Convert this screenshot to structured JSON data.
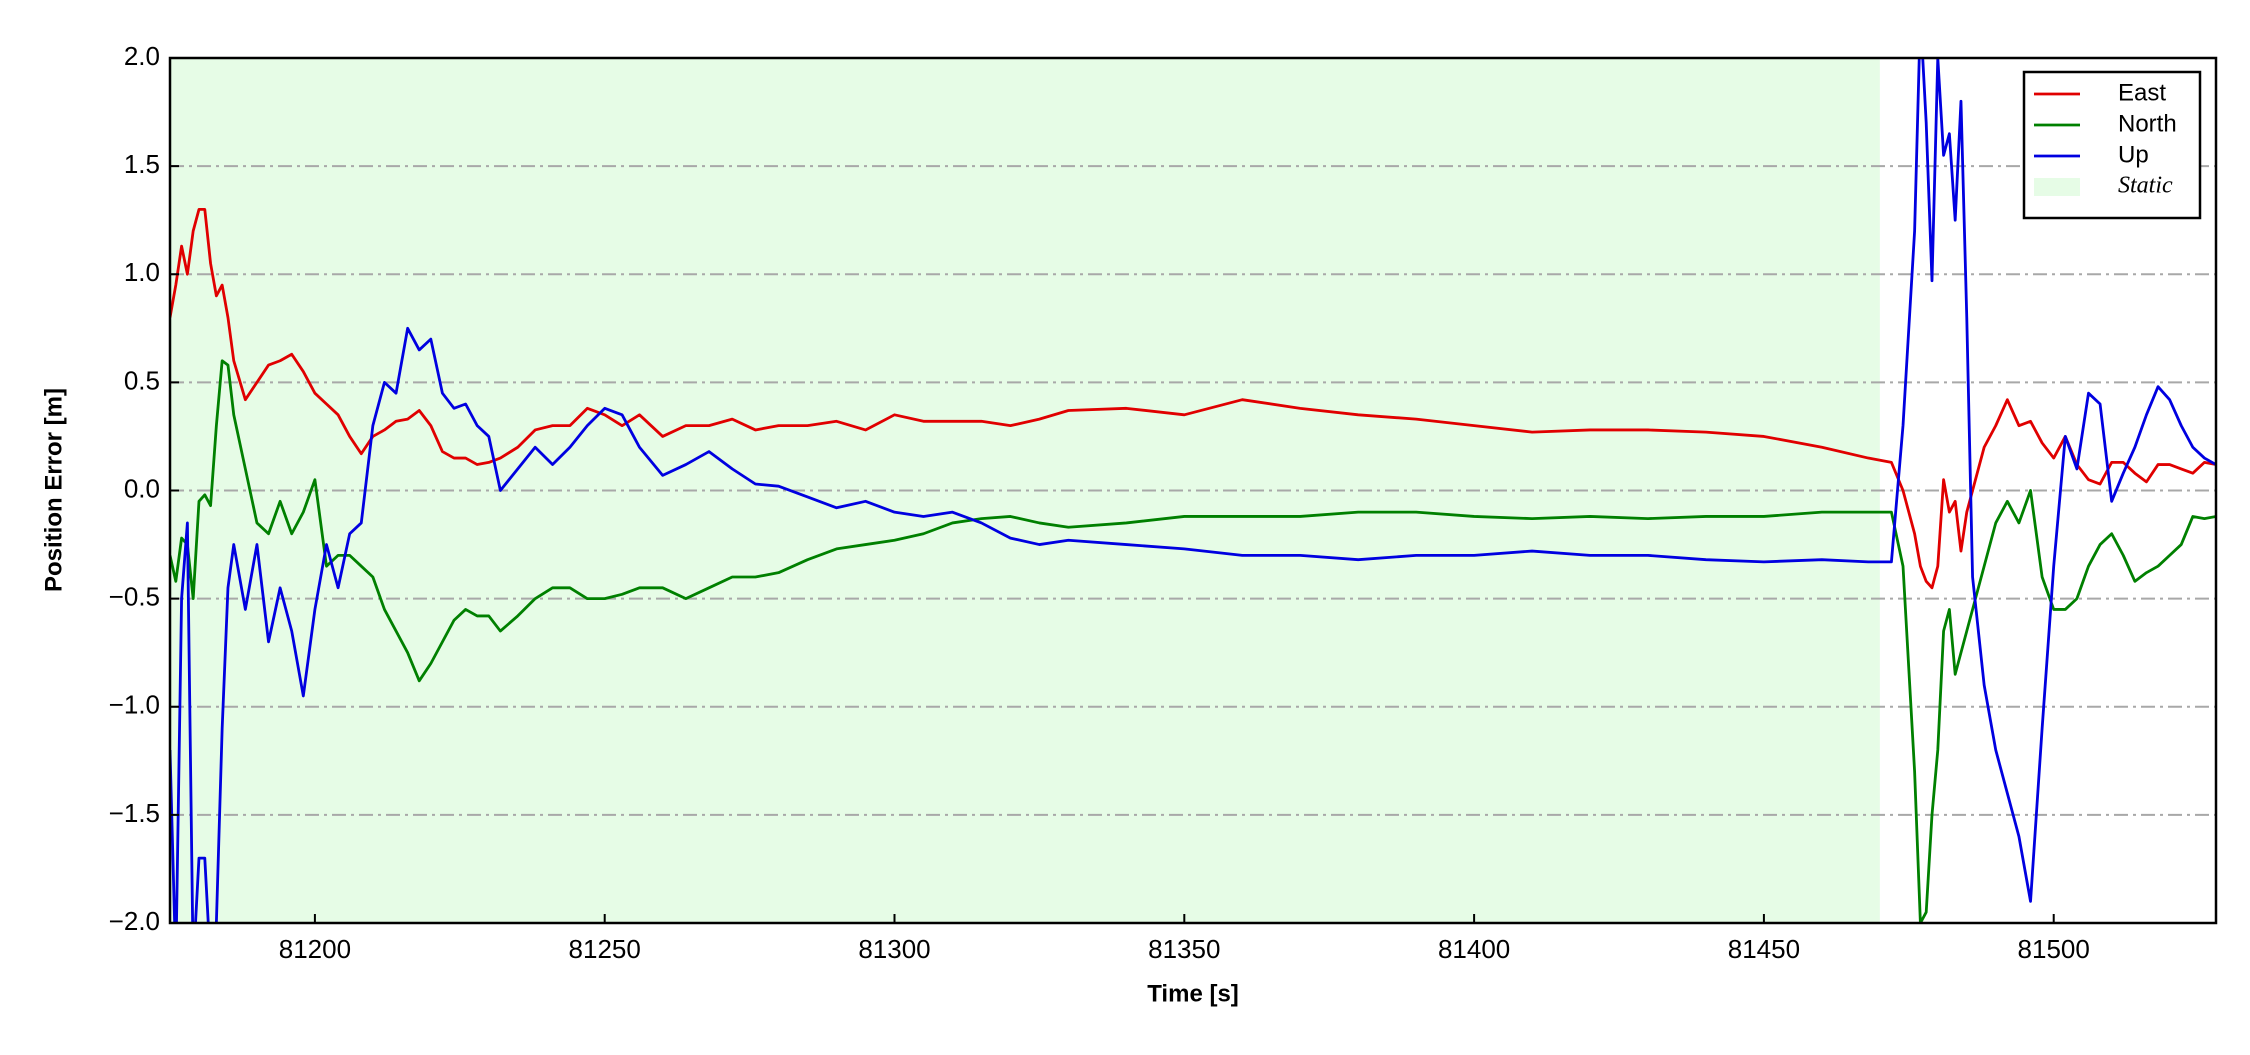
{
  "chart_data": {
    "type": "line",
    "xlabel": "Time [s]",
    "ylabel": "Position Error [m]",
    "xlim": [
      81175,
      81528
    ],
    "ylim": [
      -2.0,
      2.0
    ],
    "xticks": [
      81200,
      81250,
      81300,
      81350,
      81400,
      81450,
      81500
    ],
    "yticks": [
      {
        "value": -2.0,
        "label": "−2.0"
      },
      {
        "value": -1.5,
        "label": "−1.5"
      },
      {
        "value": -1.0,
        "label": "−1.0"
      },
      {
        "value": -0.5,
        "label": "−0.5"
      },
      {
        "value": 0,
        "label": "0.0"
      },
      0.5,
      {
        "value": 1.0,
        "label": "1.0"
      },
      1.5,
      {
        "value": 2.0,
        "label": "2.0"
      }
    ],
    "grid": true,
    "legend": "upper right",
    "shaded_regions": [
      {
        "name": "Static",
        "xlim": [
          81175,
          81470
        ],
        "color": "#e6fce6"
      }
    ],
    "x": [
      81175,
      81176,
      81177,
      81178,
      81179,
      81180,
      81181,
      81182,
      81183,
      81184,
      81185,
      81186,
      81188,
      81190,
      81192,
      81194,
      81196,
      81198,
      81200,
      81202,
      81204,
      81206,
      81208,
      81210,
      81212,
      81214,
      81216,
      81218,
      81220,
      81222,
      81224,
      81226,
      81228,
      81230,
      81232,
      81235,
      81238,
      81241,
      81244,
      81247,
      81250,
      81253,
      81256,
      81260,
      81264,
      81268,
      81272,
      81276,
      81280,
      81285,
      81290,
      81295,
      81300,
      81305,
      81310,
      81315,
      81320,
      81325,
      81330,
      81340,
      81350,
      81360,
      81370,
      81380,
      81390,
      81400,
      81410,
      81420,
      81430,
      81440,
      81450,
      81460,
      81468,
      81472,
      81474,
      81476,
      81477,
      81478,
      81479,
      81480,
      81481,
      81482,
      81483,
      81484,
      81485,
      81486,
      81488,
      81490,
      81492,
      81494,
      81496,
      81498,
      81500,
      81502,
      81504,
      81506,
      81508,
      81510,
      81512,
      81514,
      81516,
      81518,
      81520,
      81522,
      81524,
      81526,
      81528
    ],
    "series": [
      {
        "name": "East",
        "color": "#e00000",
        "values": [
          0.8,
          0.95,
          1.13,
          1.0,
          1.2,
          1.3,
          1.3,
          1.05,
          0.9,
          0.95,
          0.8,
          0.6,
          0.42,
          0.5,
          0.58,
          0.6,
          0.63,
          0.55,
          0.45,
          0.4,
          0.35,
          0.25,
          0.17,
          0.25,
          0.28,
          0.32,
          0.33,
          0.37,
          0.3,
          0.18,
          0.15,
          0.15,
          0.12,
          0.13,
          0.15,
          0.2,
          0.28,
          0.3,
          0.3,
          0.38,
          0.35,
          0.3,
          0.35,
          0.25,
          0.3,
          0.3,
          0.33,
          0.28,
          0.3,
          0.3,
          0.32,
          0.28,
          0.35,
          0.32,
          0.32,
          0.32,
          0.3,
          0.33,
          0.37,
          0.38,
          0.35,
          0.42,
          0.38,
          0.35,
          0.33,
          0.3,
          0.27,
          0.28,
          0.28,
          0.27,
          0.25,
          0.2,
          0.15,
          0.13,
          0.0,
          -0.2,
          -0.35,
          -0.42,
          -0.45,
          -0.35,
          0.05,
          -0.1,
          -0.05,
          -0.28,
          -0.1,
          0.0,
          0.2,
          0.3,
          0.42,
          0.3,
          0.32,
          0.22,
          0.15,
          0.25,
          0.12,
          0.05,
          0.03,
          0.13,
          0.13,
          0.08,
          0.04,
          0.12,
          0.12,
          0.1,
          0.08,
          0.13,
          0.12
        ]
      },
      {
        "name": "North",
        "color": "#008000",
        "values": [
          -0.3,
          -0.42,
          -0.22,
          -0.25,
          -0.5,
          -0.05,
          -0.02,
          -0.07,
          0.3,
          0.6,
          0.58,
          0.35,
          0.1,
          -0.15,
          -0.2,
          -0.05,
          -0.2,
          -0.1,
          0.05,
          -0.35,
          -0.3,
          -0.3,
          -0.35,
          -0.4,
          -0.55,
          -0.65,
          -0.75,
          -0.88,
          -0.8,
          -0.7,
          -0.6,
          -0.55,
          -0.58,
          -0.58,
          -0.65,
          -0.58,
          -0.5,
          -0.45,
          -0.45,
          -0.5,
          -0.5,
          -0.48,
          -0.45,
          -0.45,
          -0.5,
          -0.45,
          -0.4,
          -0.4,
          -0.38,
          -0.32,
          -0.27,
          -0.25,
          -0.23,
          -0.2,
          -0.15,
          -0.13,
          -0.12,
          -0.15,
          -0.17,
          -0.15,
          -0.12,
          -0.12,
          -0.12,
          -0.1,
          -0.1,
          -0.12,
          -0.13,
          -0.12,
          -0.13,
          -0.12,
          -0.12,
          -0.1,
          -0.1,
          -0.1,
          -0.35,
          -1.3,
          -2.0,
          -1.95,
          -1.5,
          -1.2,
          -0.65,
          -0.55,
          -0.85,
          -0.75,
          -0.65,
          -0.55,
          -0.35,
          -0.15,
          -0.05,
          -0.15,
          0.0,
          -0.4,
          -0.55,
          -0.55,
          -0.5,
          -0.35,
          -0.25,
          -0.2,
          -0.3,
          -0.42,
          -0.38,
          -0.35,
          -0.3,
          -0.25,
          -0.12,
          -0.13,
          -0.12
        ]
      },
      {
        "name": "Up",
        "color": "#0000e0",
        "values": [
          -1.2,
          -2.2,
          -0.5,
          -0.15,
          -2.2,
          -1.7,
          -1.7,
          -2.2,
          -2.0,
          -1.1,
          -0.45,
          -0.25,
          -0.55,
          -0.25,
          -0.7,
          -0.45,
          -0.65,
          -0.95,
          -0.55,
          -0.25,
          -0.45,
          -0.2,
          -0.15,
          0.3,
          0.5,
          0.45,
          0.75,
          0.65,
          0.7,
          0.45,
          0.38,
          0.4,
          0.3,
          0.25,
          0.0,
          0.1,
          0.2,
          0.12,
          0.2,
          0.3,
          0.38,
          0.35,
          0.2,
          0.07,
          0.12,
          0.18,
          0.1,
          0.03,
          0.02,
          -0.03,
          -0.08,
          -0.05,
          -0.1,
          -0.12,
          -0.1,
          -0.15,
          -0.22,
          -0.25,
          -0.23,
          -0.25,
          -0.27,
          -0.3,
          -0.3,
          -0.32,
          -0.3,
          -0.3,
          -0.28,
          -0.3,
          -0.3,
          -0.32,
          -0.33,
          -0.32,
          -0.33,
          -0.33,
          0.3,
          1.2,
          2.2,
          1.7,
          0.97,
          2.0,
          1.55,
          1.65,
          1.25,
          1.8,
          0.8,
          -0.4,
          -0.9,
          -1.2,
          -1.4,
          -1.6,
          -1.9,
          -1.1,
          -0.35,
          0.25,
          0.1,
          0.45,
          0.4,
          -0.05,
          0.08,
          0.2,
          0.35,
          0.48,
          0.42,
          0.3,
          0.2,
          0.15,
          0.12
        ]
      }
    ]
  }
}
